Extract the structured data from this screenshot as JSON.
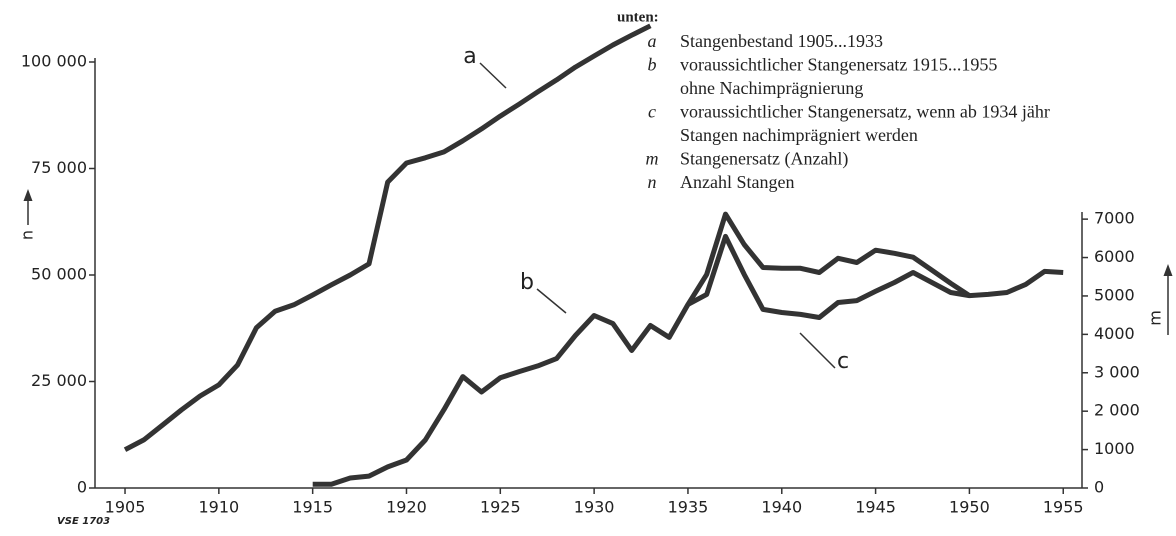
{
  "chart_data": {
    "type": "line",
    "x": [
      1905,
      1906,
      1907,
      1908,
      1909,
      1910,
      1911,
      1912,
      1913,
      1914,
      1915,
      1916,
      1917,
      1918,
      1919,
      1920,
      1921,
      1922,
      1923,
      1924,
      1925,
      1926,
      1927,
      1928,
      1929,
      1930,
      1931,
      1932,
      1933,
      1934,
      1935,
      1936,
      1937,
      1938,
      1939,
      1940,
      1941,
      1942,
      1943,
      1944,
      1945,
      1946,
      1947,
      1948,
      1949,
      1950,
      1951,
      1952,
      1953,
      1954,
      1955
    ],
    "series": [
      {
        "name": "a",
        "color": "#333333",
        "axis": "y",
        "values": [
          9000,
          11300,
          14800,
          18300,
          21600,
          24200,
          28900,
          37600,
          41500,
          43000,
          45300,
          47700,
          50000,
          52600,
          71800,
          76300,
          77500,
          78900,
          81500,
          84300,
          87300,
          90100,
          93000,
          95800,
          98800,
          101400,
          104000,
          106300,
          108500,
          null,
          null,
          null,
          null,
          null,
          null,
          null,
          null,
          null,
          null,
          null,
          null,
          null,
          null,
          null,
          null,
          null,
          null,
          null,
          null,
          null,
          null
        ]
      },
      {
        "name": "b",
        "color": "#333333",
        "axis": "y2",
        "values": [
          null,
          null,
          null,
          null,
          null,
          null,
          null,
          null,
          null,
          null,
          100,
          100,
          260,
          310,
          550,
          730,
          1250,
          2040,
          2900,
          2500,
          2870,
          3030,
          3180,
          3370,
          3970,
          4490,
          4280,
          3580,
          4230,
          3920,
          4780,
          5560,
          7130,
          6340,
          5740,
          5720,
          5720,
          5610,
          5980,
          5870,
          6190,
          6110,
          6010,
          5670,
          5330,
          5010,
          5040,
          5090,
          5300,
          5640,
          5610
        ]
      },
      {
        "name": "c",
        "color": "#333333",
        "axis": "y2",
        "values": [
          null,
          null,
          null,
          null,
          null,
          null,
          null,
          null,
          null,
          null,
          null,
          null,
          null,
          null,
          null,
          null,
          null,
          null,
          null,
          null,
          null,
          null,
          null,
          null,
          null,
          null,
          null,
          null,
          null,
          null,
          4780,
          5040,
          6550,
          5560,
          4650,
          4570,
          4520,
          4440,
          4830,
          4880,
          5120,
          5350,
          5610,
          5350,
          5090,
          5010,
          null,
          null,
          null,
          null,
          null
        ]
      }
    ],
    "xlim": [
      1903.4,
      1956
    ],
    "xticks": [
      1905,
      1910,
      1915,
      1920,
      1925,
      1930,
      1935,
      1940,
      1945,
      1950,
      1955
    ],
    "ylim": [
      0,
      110000
    ],
    "yticks": [
      0,
      {
        "value": 25000,
        "label": "25 000"
      },
      {
        "value": 50000,
        "label": "50 000"
      },
      {
        "value": 75000,
        "label": "75 000"
      },
      {
        "value": 100000,
        "label": "100 000"
      }
    ],
    "y2lim": [
      0,
      12200
    ],
    "y2ticks": [
      0,
      1000,
      {
        "value": 2000,
        "label": "2 000"
      },
      {
        "value": 3000,
        "label": "3 000"
      },
      4000,
      5000,
      6000,
      7000
    ],
    "ylabel": "n",
    "y2label": "m",
    "figure_id": "VSE 1703",
    "notes": {
      "heading": "unten:",
      "items": [
        {
          "key": "a",
          "lines": [
            "Stangenbestand 1905...1933"
          ]
        },
        {
          "key": "b",
          "lines": [
            "voraussichtlicher Stangenersatz 1915...1955",
            "ohne Nachimprägnierung"
          ]
        },
        {
          "key": "c",
          "lines": [
            "voraussichtlicher Stangenersatz, wenn ab 1934 jähr",
            "Stangen nachimprägniert werden"
          ]
        },
        {
          "key": "m",
          "lines": [
            "Stangenersatz (Anzahl)"
          ]
        },
        {
          "key": "n",
          "lines": [
            "Anzahl Stangen"
          ]
        }
      ]
    }
  }
}
